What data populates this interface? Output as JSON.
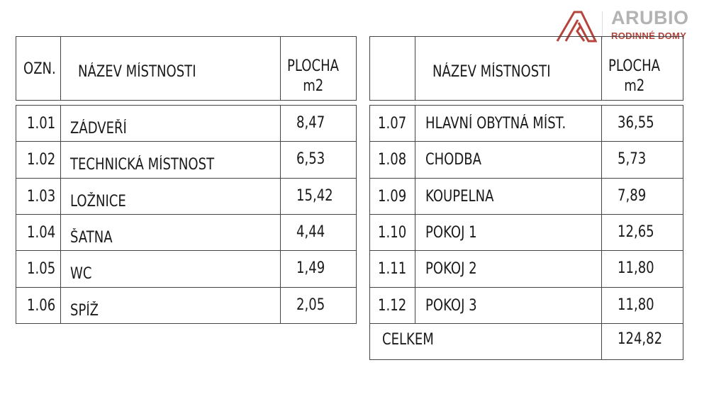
{
  "logo": {
    "brand": "ARUBIO",
    "tagline": "RODINNÉ DOMY",
    "color": "#b5443c"
  },
  "left_table": {
    "headers": {
      "code": "OZN.",
      "name": "NÁZEV MÍSTNOSTI",
      "area_line1": "PLOCHA",
      "area_line2": "m2"
    },
    "rows": [
      {
        "code": "1.01",
        "name": "ZÁDVEŘÍ",
        "area": "8,47"
      },
      {
        "code": "1.02",
        "name": "TECHNICKÁ MÍSTNOST",
        "area": "6,53"
      },
      {
        "code": "1.03",
        "name": "LOŽNICE",
        "area": "15,42"
      },
      {
        "code": "1.04",
        "name": "ŠATNA",
        "area": "4,44"
      },
      {
        "code": "1.05",
        "name": "WC",
        "area": "1,49"
      },
      {
        "code": "1.06",
        "name": "SPÍŽ",
        "area": "2,05"
      }
    ]
  },
  "right_table": {
    "headers": {
      "code": "",
      "name": "NÁZEV MÍSTNOSTI",
      "area_line1": "PLOCHA",
      "area_line2": "m2"
    },
    "rows": [
      {
        "code": "1.07",
        "name": "HLAVNÍ OBYTNÁ MÍST.",
        "area": "36,55"
      },
      {
        "code": "1.08",
        "name": "CHODBA",
        "area": "5,73"
      },
      {
        "code": "1.09",
        "name": "KOUPELNA",
        "area": "7,89"
      },
      {
        "code": "1.10",
        "name": "POKOJ 1",
        "area": "12,65"
      },
      {
        "code": "1.11",
        "name": "POKOJ 2",
        "area": "11,80"
      },
      {
        "code": "1.12",
        "name": "POKOJ 3",
        "area": "11,80"
      }
    ],
    "total": {
      "label": "CELKEM",
      "value": "124,82"
    }
  }
}
